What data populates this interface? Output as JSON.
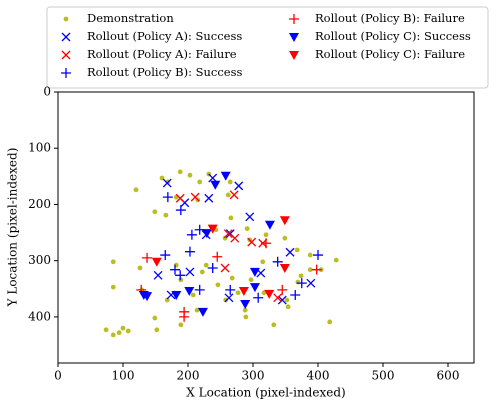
{
  "chart_data": {
    "type": "scatter",
    "x_label": "X Location (pixel-indexed)",
    "y_label": "Y Location (pixel-indexed)",
    "xlim": [
      0,
      640
    ],
    "ylim": [
      482,
      0
    ],
    "xticks": [
      0,
      100,
      200,
      300,
      400,
      500,
      600
    ],
    "yticks": [
      0,
      100,
      200,
      300,
      400
    ],
    "legend": "above",
    "legend_columns": 2,
    "series": [
      {
        "name": "Demonstration",
        "color": "#bcbd22",
        "marker": "o",
        "x": [
          74,
          94,
          100,
          108,
          85,
          120,
          160,
          169,
          188,
          203,
          218,
          232,
          265,
          149,
          166,
          182,
          243,
          266,
          291,
          320,
          349,
          368,
          388,
          126,
          129,
          149,
          152,
          168,
          182,
          189,
          208,
          214,
          189,
          222,
          246,
          258,
          277,
          288,
          297,
          317,
          332,
          352,
          369,
          388,
          405,
          418,
          428,
          85,
          85,
          268,
          295,
          315,
          374,
          354,
          289,
          228,
          257,
          215,
          262
        ],
        "y": [
          423,
          428,
          420,
          425,
          432,
          174,
          153,
          160,
          142,
          148,
          160,
          146,
          160,
          213,
          219,
          187,
          245,
          224,
          243,
          254,
          260,
          281,
          290,
          313,
          352,
          402,
          423,
          370,
          308,
          334,
          361,
          388,
          414,
          320,
          343,
          370,
          357,
          388,
          334,
          357,
          414,
          370,
          338,
          316,
          316,
          409,
          299,
          302,
          347,
          331,
          263,
          302,
          327,
          382,
          400,
          308,
          260,
          192,
          183
        ]
      },
      {
        "name": "Rollout (Policy A): Success",
        "color": "#0000ff",
        "marker": "x",
        "x": [
          168,
          195,
          232,
          238,
          278,
          295,
          228,
          265,
          312,
          357,
          389,
          345,
          154,
          203,
          174,
          263
        ],
        "y": [
          162,
          197,
          189,
          153,
          167,
          222,
          254,
          252,
          322,
          285,
          340,
          370,
          326,
          320,
          361,
          366
        ]
      },
      {
        "name": "Rollout (Policy A): Failure",
        "color": "#ff0000",
        "marker": "x",
        "x": [
          211,
          271,
          262,
          298,
          315,
          272,
          338,
          257,
          188
        ],
        "y": [
          187,
          183,
          252,
          267,
          269,
          260,
          366,
          313,
          189
        ]
      },
      {
        "name": "Rollout (Policy B): Success",
        "color": "#0000ff",
        "marker": "+",
        "x": [
          169,
          189,
          206,
          218,
          203,
          165,
          188,
          180,
          238,
          308,
          218,
          265,
          365,
          375,
          400,
          338
        ],
        "y": [
          187,
          210,
          254,
          245,
          284,
          290,
          326,
          316,
          313,
          366,
          352,
          352,
          361,
          340,
          290,
          302
        ]
      },
      {
        "name": "Rollout (Policy B): Failure",
        "color": "#ff0000",
        "marker": "+",
        "x": [
          137,
          128,
          194,
          194,
          320,
          345,
          398,
          245
        ],
        "y": [
          295,
          352,
          391,
          400,
          269,
          352,
          316,
          293
        ]
      },
      {
        "name": "Rollout (Policy C): Success",
        "color": "#0000ff",
        "marker": "v",
        "x": [
          137,
          132,
          182,
          202,
          223,
          229,
          258,
          242,
          326,
          303,
          288,
          303
        ],
        "y": [
          363,
          361,
          361,
          354,
          391,
          251,
          149,
          165,
          236,
          320,
          377,
          347
        ]
      },
      {
        "name": "Rollout (Policy C): Failure",
        "color": "#ff0000",
        "marker": "v",
        "x": [
          152,
          238,
          349,
          286,
          325,
          349
        ],
        "y": [
          302,
          243,
          228,
          354,
          359,
          313
        ]
      }
    ]
  }
}
